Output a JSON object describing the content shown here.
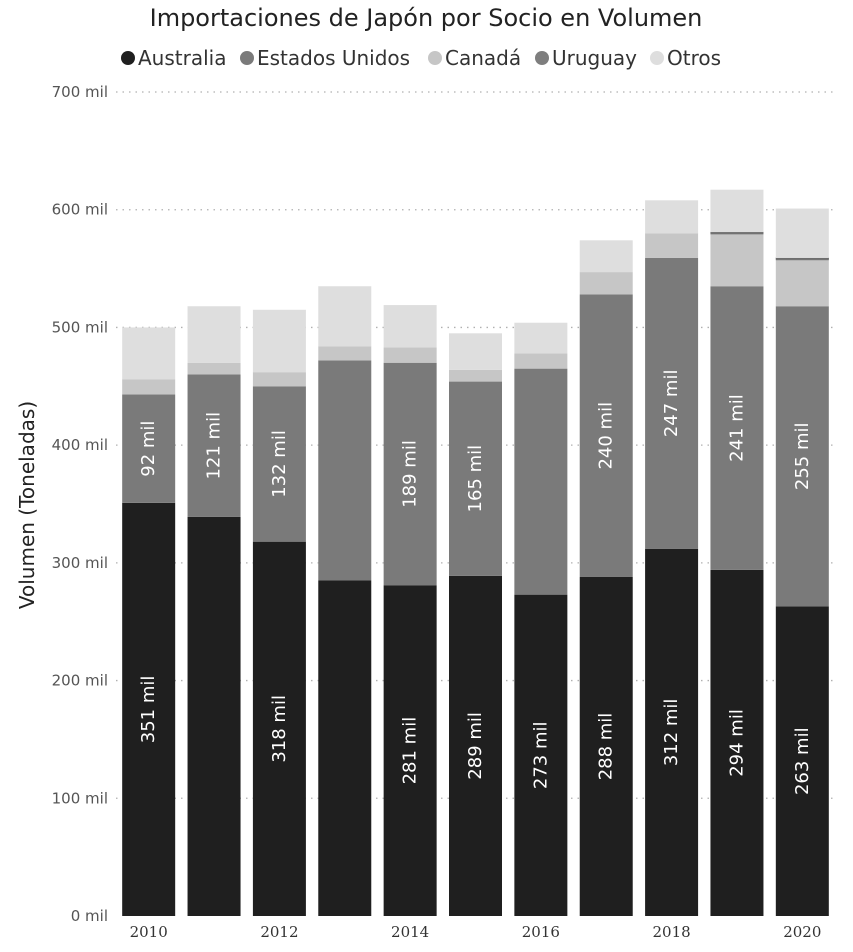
{
  "chart_data": {
    "type": "bar",
    "stacked": true,
    "title": "Importaciones de Japón por Socio en Volumen",
    "ylabel": "Volumen (Toneladas)",
    "xlabel": "",
    "ylim": [
      0,
      700000
    ],
    "yticks": [
      {
        "value": 0,
        "label": "0 mil"
      },
      {
        "value": 100000,
        "label": "100 mil"
      },
      {
        "value": 200000,
        "label": "200 mil"
      },
      {
        "value": 300000,
        "label": "300 mil"
      },
      {
        "value": 400000,
        "label": "400 mil"
      },
      {
        "value": 500000,
        "label": "500 mil"
      },
      {
        "value": 600000,
        "label": "600 mil"
      },
      {
        "value": 700000,
        "label": "700 mil"
      }
    ],
    "grid": true,
    "legend_position": "top",
    "categories": [
      "2010",
      "2011",
      "2012",
      "2013",
      "2014",
      "2015",
      "2016",
      "2017",
      "2018",
      "2019",
      "2020"
    ],
    "xtick_labels": [
      "2010",
      "",
      "2012",
      "",
      "2014",
      "",
      "2016",
      "",
      "2018",
      "",
      "2020"
    ],
    "series": [
      {
        "name": "Australia",
        "color": "#1f1f1f",
        "values": [
          351000,
          339000,
          318000,
          285000,
          281000,
          289000,
          273000,
          288000,
          312000,
          294000,
          263000
        ],
        "labels": [
          "351 mil",
          "",
          "318 mil",
          "",
          "281 mil",
          "289 mil",
          "273 mil",
          "288 mil",
          "312 mil",
          "294 mil",
          "263 mil"
        ]
      },
      {
        "name": "Estados Unidos",
        "color": "#7a7a7a",
        "values": [
          92000,
          121000,
          132000,
          187000,
          189000,
          165000,
          192000,
          240000,
          247000,
          241000,
          255000
        ],
        "labels": [
          "92 mil",
          "121 mil",
          "132 mil",
          "",
          "189 mil",
          "165 mil",
          "",
          "240 mil",
          "247 mil",
          "241 mil",
          "255 mil"
        ]
      },
      {
        "name": "Canadá",
        "color": "#c6c6c6",
        "values": [
          13000,
          10000,
          12000,
          12000,
          13000,
          10000,
          13000,
          19000,
          21000,
          44000,
          39000
        ],
        "labels": [
          "",
          "",
          "",
          "",
          "",
          "",
          "",
          "",
          "",
          "",
          ""
        ]
      },
      {
        "name": "Uruguay",
        "color": "#7e7e7e",
        "values": [
          0,
          0,
          0,
          0,
          0,
          0,
          0,
          0,
          0,
          2000,
          2000
        ],
        "labels": [
          "",
          "",
          "",
          "",
          "",
          "",
          "",
          "",
          "",
          "",
          ""
        ]
      },
      {
        "name": "Otros",
        "color": "#dedede",
        "values": [
          44000,
          48000,
          53000,
          51000,
          36000,
          31000,
          26000,
          27000,
          28000,
          36000,
          42000
        ],
        "labels": [
          "",
          "",
          "",
          "",
          "",
          "",
          "",
          "",
          "",
          "",
          ""
        ]
      }
    ]
  }
}
